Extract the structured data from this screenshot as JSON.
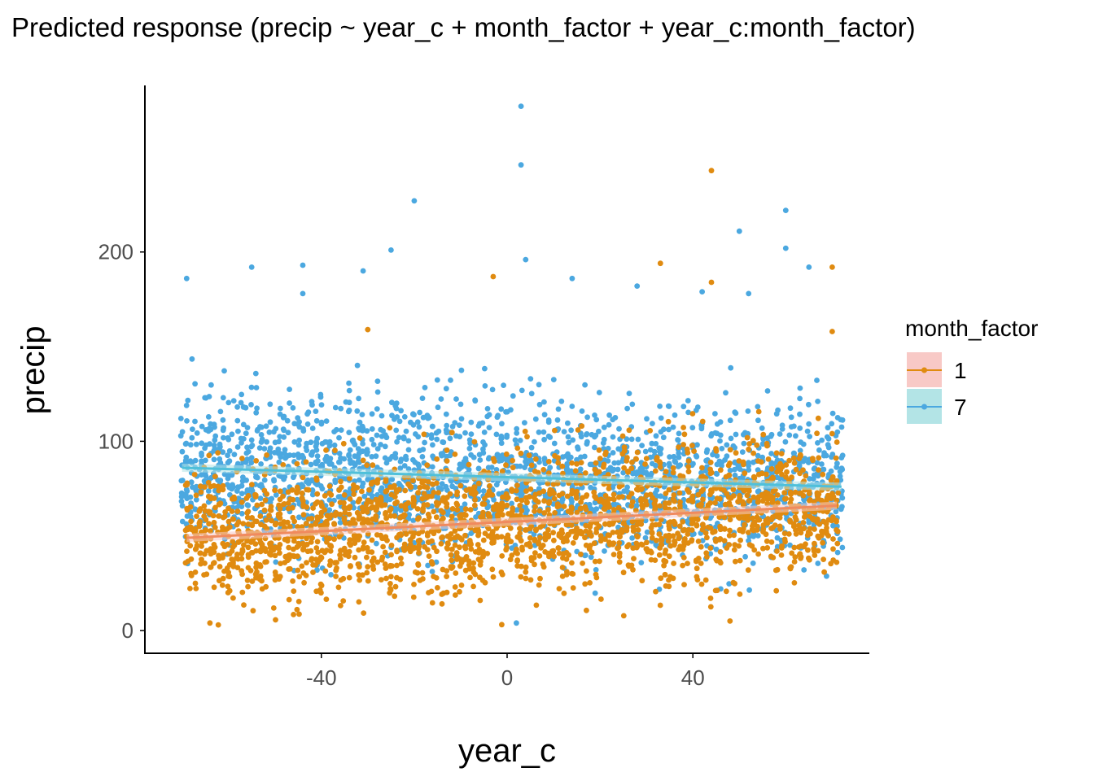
{
  "chart_data": {
    "type": "scatter",
    "title": "Predicted response (precip ~ year_c + month_factor + year_c:month_factor)",
    "xlabel": "year_c",
    "ylabel": "precip",
    "xlim": [
      -78,
      78
    ],
    "ylim": [
      -12,
      288
    ],
    "x_ticks": [
      -40,
      0,
      40
    ],
    "x_tick_labels": [
      "-40",
      "0",
      "40"
    ],
    "y_ticks": [
      0,
      100,
      200
    ],
    "y_tick_labels": [
      "0",
      "100",
      "200"
    ],
    "grid": false,
    "legend": {
      "title": "month_factor",
      "position": "right",
      "entries": [
        {
          "label": "1",
          "point_color": "#E08B10",
          "band_color": "#F8C9C6"
        },
        {
          "label": "7",
          "point_color": "#4BA8E0",
          "band_color": "#B3E4E6"
        }
      ]
    },
    "series": [
      {
        "name": "1",
        "color": "#E08B10",
        "fit_color": "#F08A5E",
        "x_range": [
          -69,
          71
        ],
        "fit": {
          "x": [
            -69,
            71
          ],
          "y": [
            49,
            66
          ]
        },
        "mean": 57.5,
        "spread": 26,
        "outliers": [
          {
            "x": -3,
            "y": 187
          },
          {
            "x": 33,
            "y": 194
          },
          {
            "x": 44,
            "y": 243
          },
          {
            "x": 44,
            "y": 184
          },
          {
            "x": 70,
            "y": 192
          },
          {
            "x": -30,
            "y": 159
          },
          {
            "x": 70,
            "y": 158
          },
          {
            "x": 48,
            "y": 5
          },
          {
            "x": -64,
            "y": 4
          }
        ]
      },
      {
        "name": "7",
        "color": "#4BA8E0",
        "fit_color": "#4FC0DA",
        "x_range": [
          -70,
          72
        ],
        "fit": {
          "x": [
            -70,
            72
          ],
          "y": [
            86,
            76
          ]
        },
        "mean": 81,
        "spread": 30,
        "outliers": [
          {
            "x": 3,
            "y": 277
          },
          {
            "x": 3,
            "y": 246
          },
          {
            "x": -20,
            "y": 227
          },
          {
            "x": 60,
            "y": 222
          },
          {
            "x": 50,
            "y": 211
          },
          {
            "x": 60,
            "y": 202
          },
          {
            "x": -25,
            "y": 201
          },
          {
            "x": 4,
            "y": 196
          },
          {
            "x": -55,
            "y": 192
          },
          {
            "x": -44,
            "y": 193
          },
          {
            "x": 65,
            "y": 192
          },
          {
            "x": -31,
            "y": 190
          },
          {
            "x": -69,
            "y": 186
          },
          {
            "x": 14,
            "y": 186
          },
          {
            "x": 28,
            "y": 182
          },
          {
            "x": 52,
            "y": 178
          },
          {
            "x": 42,
            "y": 179
          },
          {
            "x": -44,
            "y": 178
          },
          {
            "x": 2,
            "y": 4
          },
          {
            "x": 46,
            "y": 22
          }
        ]
      }
    ]
  }
}
